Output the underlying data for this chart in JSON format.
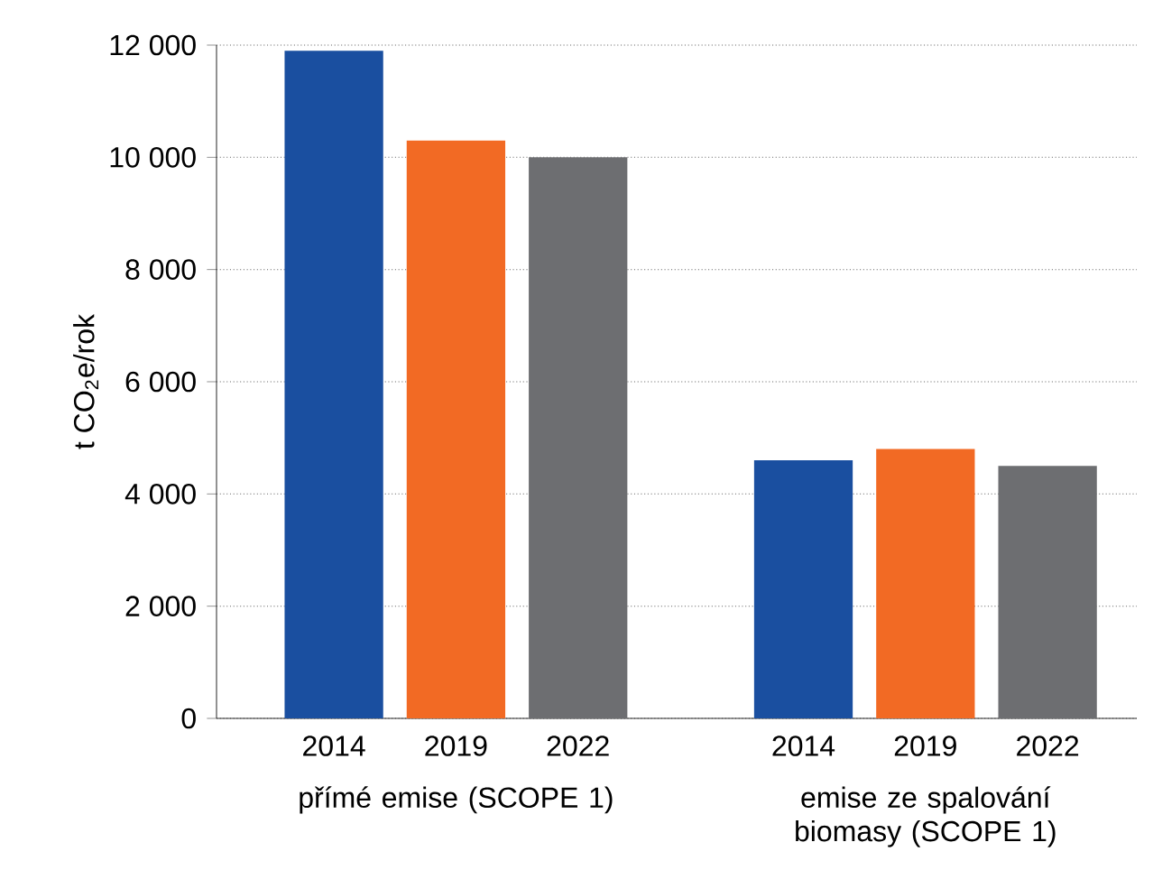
{
  "chart_data": {
    "type": "bar",
    "ylabel": "t CO$_{2}$e/rok",
    "categories": [
      "přímé emise (SCOPE 1)",
      "emise ze spalování biomasy (SCOPE 1)"
    ],
    "series": [
      {
        "name": "2014",
        "color": "#1a4fa0",
        "values": [
          11900,
          4600
        ]
      },
      {
        "name": "2019",
        "color": "#f26a24",
        "values": [
          10300,
          4800
        ]
      },
      {
        "name": "2022",
        "color": "#6d6e71",
        "values": [
          10000,
          4500
        ]
      }
    ],
    "ylim": [
      0,
      12000
    ],
    "yticks": [
      0,
      {
        "value": 2000,
        "label": "2 000"
      },
      {
        "value": 4000,
        "label": "4 000"
      },
      {
        "value": 6000,
        "label": "6 000"
      },
      {
        "value": 8000,
        "label": "8 000"
      },
      {
        "value": 10000,
        "label": "10 000"
      },
      {
        "value": 12000,
        "label": "12 000"
      }
    ],
    "grid": "y"
  }
}
